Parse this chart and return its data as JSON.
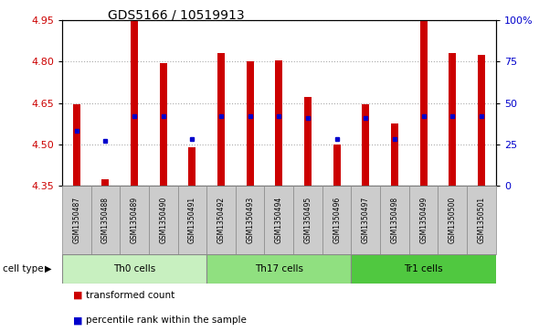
{
  "title": "GDS5166 / 10519913",
  "samples": [
    "GSM1350487",
    "GSM1350488",
    "GSM1350489",
    "GSM1350490",
    "GSM1350491",
    "GSM1350492",
    "GSM1350493",
    "GSM1350494",
    "GSM1350495",
    "GSM1350496",
    "GSM1350497",
    "GSM1350498",
    "GSM1350499",
    "GSM1350500",
    "GSM1350501"
  ],
  "transformed_count": [
    4.645,
    4.375,
    4.95,
    4.795,
    4.49,
    4.83,
    4.8,
    4.805,
    4.67,
    4.5,
    4.645,
    4.575,
    4.945,
    4.83,
    4.825
  ],
  "percentile_rank": [
    33,
    27,
    42,
    42,
    28,
    42,
    42,
    42,
    41,
    28,
    41,
    28,
    42,
    42,
    42
  ],
  "ylim_left": [
    4.35,
    4.95
  ],
  "ylim_right": [
    0,
    100
  ],
  "yticks_left": [
    4.35,
    4.5,
    4.65,
    4.8,
    4.95
  ],
  "yticks_right": [
    0,
    25,
    50,
    75,
    100
  ],
  "ytick_labels_right": [
    "0",
    "25",
    "50",
    "75",
    "100%"
  ],
  "cell_groups": [
    {
      "label": "Th0 cells",
      "start": 0,
      "end": 4,
      "color": "#c8f0c0"
    },
    {
      "label": "Th17 cells",
      "start": 5,
      "end": 9,
      "color": "#90e080"
    },
    {
      "label": "Tr1 cells",
      "start": 10,
      "end": 14,
      "color": "#50c840"
    }
  ],
  "bar_color": "#cc0000",
  "dot_color": "#0000cc",
  "bar_bottom": 4.35,
  "bar_width": 0.25,
  "cell_type_label": "cell type",
  "legend_items": [
    {
      "label": "transformed count",
      "color": "#cc0000"
    },
    {
      "label": "percentile rank within the sample",
      "color": "#0000cc"
    }
  ],
  "grid_color": "#aaaaaa",
  "plot_bg_color": "#ffffff",
  "tick_label_color_left": "#cc0000",
  "tick_label_color_right": "#0000cc",
  "label_bg_color": "#cccccc",
  "label_border_color": "#888888"
}
